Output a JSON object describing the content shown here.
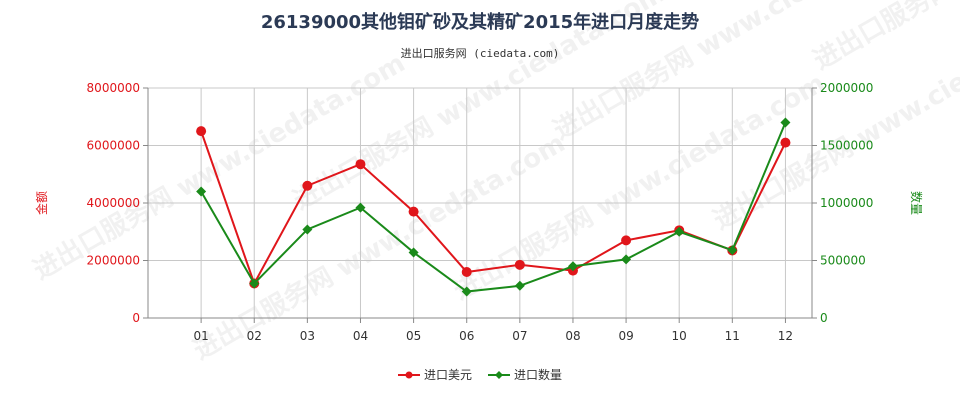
{
  "chart_data": {
    "type": "line",
    "title": "26139000其他钼矿砂及其精矿2015年进口月度走势",
    "subtitle": "进出口服务网 (ciedata.com)",
    "watermark": "进出口服务网 www.ciedata.com",
    "categories": [
      "01",
      "02",
      "03",
      "04",
      "05",
      "06",
      "07",
      "08",
      "09",
      "10",
      "11",
      "12"
    ],
    "y_left": {
      "label": "金额",
      "ylim": [
        0,
        8000000
      ],
      "ticks": [
        0,
        2000000,
        4000000,
        6000000,
        8000000
      ],
      "tick_labels": [
        "0",
        "2000000",
        "4000000",
        "6000000",
        "8000000"
      ],
      "color": "#e0161b"
    },
    "y_right": {
      "label": "数量",
      "ylim": [
        0,
        2000000
      ],
      "ticks": [
        0,
        500000,
        1000000,
        1500000,
        2000000
      ],
      "tick_labels": [
        "0",
        "500000",
        "1000000",
        "1500000",
        "2000000"
      ],
      "color": "#1a8a1a"
    },
    "series": [
      {
        "name": "进口美元",
        "axis": "left",
        "color": "#e0161b",
        "marker": "circle",
        "values": [
          6500000,
          1200000,
          4600000,
          5350000,
          3700000,
          1600000,
          1850000,
          1650000,
          2700000,
          3050000,
          2350000,
          6100000
        ]
      },
      {
        "name": "进口数量",
        "axis": "right",
        "color": "#1a8a1a",
        "marker": "diamond",
        "values": [
          1100000,
          300000,
          770000,
          960000,
          570000,
          230000,
          280000,
          450000,
          510000,
          750000,
          590000,
          1700000
        ]
      }
    ],
    "grid": true,
    "legend": "bottom-center"
  }
}
